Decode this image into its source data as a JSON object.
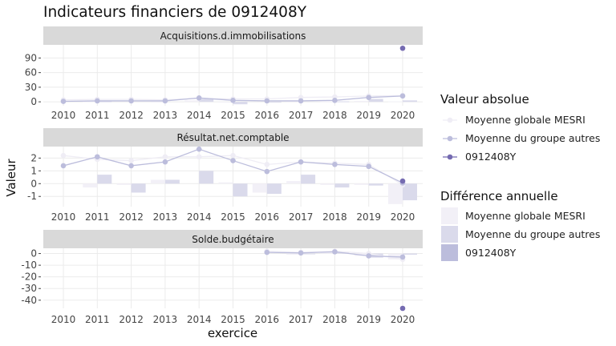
{
  "chart_data": {
    "type": "line",
    "title": "Indicateurs financiers de 0912408Y",
    "xlabel": "exercice",
    "ylabel": "Valeur",
    "legend_position": "right",
    "legend_absolute_title": "Valeur absolue",
    "legend_diff_title": "Différence annuelle",
    "colors": {
      "Moyenne globale MESRI": "#efedf5",
      "Moyenne du groupe autres": "#bcbddc",
      "0912408Y": "#756bb1"
    },
    "diff_colors": {
      "Moyenne globale MESRI": "#f2f0f7",
      "Moyenne du groupe autres": "#dadaeb",
      "0912408Y": "#bcbddc"
    },
    "series_names": [
      "Moyenne globale MESRI",
      "Moyenne du groupe autres",
      "0912408Y"
    ],
    "x": [
      "2010",
      "2011",
      "2012",
      "2013",
      "2014",
      "2015",
      "2016",
      "2017",
      "2018",
      "2019",
      "2020"
    ],
    "panels": [
      {
        "label": "Acquisitions.d.immobilisations",
        "ylim": [
          -8,
          117
        ],
        "yticks": [
          0,
          30,
          60,
          90
        ],
        "series": [
          {
            "name": "Moyenne globale MESRI",
            "values": [
              4,
              5,
              5,
              4,
              7,
              6,
              6,
              9,
              10,
              12,
              13
            ]
          },
          {
            "name": "Moyenne du groupe autres",
            "values": [
              1,
              2,
              2,
              2,
              8,
              3,
              2,
              2,
              3,
              9,
              12
            ]
          },
          {
            "name": "0912408Y",
            "values": [
              null,
              null,
              null,
              null,
              null,
              null,
              null,
              null,
              null,
              null,
              110
            ]
          }
        ],
        "diff_series": [
          {
            "name": "Moyenne globale MESRI",
            "values": [
              null,
              1,
              0,
              -1,
              3,
              -1,
              0,
              3,
              1,
              2,
              1
            ]
          },
          {
            "name": "Moyenne du groupe autres",
            "values": [
              null,
              1,
              0,
              0,
              6,
              -5,
              -1,
              0,
              1,
              6,
              3
            ]
          }
        ]
      },
      {
        "label": "Résultat.net.comptable",
        "ylim": [
          -1.8,
          2.9
        ],
        "yticks": [
          -1,
          0,
          1,
          2
        ],
        "series": [
          {
            "name": "Moyenne globale MESRI",
            "values": [
              2.2,
              1.9,
              1.8,
              2.1,
              2.1,
              2.2,
              1.5,
              1.7,
              1.6,
              1.5,
              -0.1
            ]
          },
          {
            "name": "Moyenne du groupe autres",
            "values": [
              1.4,
              2.1,
              1.4,
              1.7,
              2.7,
              1.8,
              0.95,
              1.7,
              1.5,
              1.35,
              0.05
            ]
          },
          {
            "name": "0912408Y",
            "values": [
              null,
              null,
              null,
              null,
              null,
              null,
              null,
              null,
              null,
              null,
              0.2
            ]
          }
        ],
        "diff_series": [
          {
            "name": "Moyenne globale MESRI",
            "values": [
              null,
              -0.3,
              -0.1,
              0.3,
              0.0,
              0.1,
              -0.7,
              0.2,
              -0.1,
              -0.1,
              -1.6
            ]
          },
          {
            "name": "Moyenne du groupe autres",
            "values": [
              null,
              0.7,
              -0.7,
              0.3,
              1.0,
              -1.0,
              -0.8,
              0.7,
              -0.3,
              -0.15,
              -1.3
            ]
          }
        ]
      },
      {
        "label": "Solde.budgétaire",
        "ylim": [
          -47,
          4.5
        ],
        "yticks": [
          -40,
          -30,
          -20,
          -10,
          0
        ],
        "series": [
          {
            "name": "Moyenne globale MESRI",
            "values": [
              null,
              null,
              null,
              null,
              null,
              null,
              2,
              1,
              2,
              0,
              -5
            ]
          },
          {
            "name": "Moyenne du groupe autres",
            "values": [
              null,
              null,
              null,
              null,
              null,
              null,
              1,
              0.5,
              1.5,
              -2,
              -3
            ]
          },
          {
            "name": "0912408Y",
            "values": [
              null,
              null,
              null,
              null,
              null,
              null,
              null,
              null,
              null,
              null,
              -47
            ]
          }
        ],
        "diff_series": [
          {
            "name": "Moyenne globale MESRI",
            "values": [
              null,
              null,
              null,
              null,
              null,
              null,
              null,
              -1,
              1,
              -2,
              -5
            ]
          },
          {
            "name": "Moyenne du groupe autres",
            "values": [
              null,
              null,
              null,
              null,
              null,
              null,
              null,
              -0.5,
              1,
              -3.5,
              -1
            ]
          }
        ]
      }
    ]
  }
}
